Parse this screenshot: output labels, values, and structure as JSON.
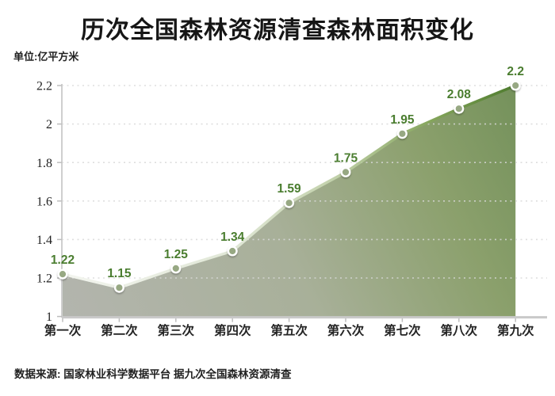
{
  "title": "历次全国森林资源清查森林面积变化",
  "unit_label": "单位:亿平方米",
  "source": "数据来源: 国家林业科学数据平台 据九次全国森林资源清查",
  "colors": {
    "label_green": "#4a7d2f",
    "line_start": "#f3f5ef",
    "line_mid": "#c2d1ab",
    "line_end": "#4d7b2d",
    "area_start": "#b3b5ae",
    "area_mid": "#a8b099",
    "area_end": "#74915b",
    "point_fill": "#97a883",
    "point_stroke": "#ffffff",
    "axis_gray": "#cfcfcf",
    "baseline_gray": "#c9c9c9",
    "grid_gray": "#d9d9d9",
    "text_dark": "#1f1f1f"
  },
  "chart_data": {
    "type": "area",
    "title": "历次全国森林资源清查森林面积变化",
    "ylabel": "单位:亿平方米",
    "xlabel": "",
    "categories": [
      "第一次",
      "第二次",
      "第三次",
      "第四次",
      "第五次",
      "第六次",
      "第七次",
      "第八次",
      "第九次"
    ],
    "values": [
      1.22,
      1.15,
      1.25,
      1.34,
      1.59,
      1.75,
      1.95,
      2.08,
      2.2
    ],
    "ylim": [
      1.0,
      2.2
    ],
    "yticks": [
      1,
      1.2,
      1.4,
      1.6,
      1.8,
      2,
      2.2
    ],
    "grid": "dotted-horizontal",
    "legend": "none",
    "source": "数据来源: 国家林业科学数据平台 据九次全国森林资源清查"
  }
}
